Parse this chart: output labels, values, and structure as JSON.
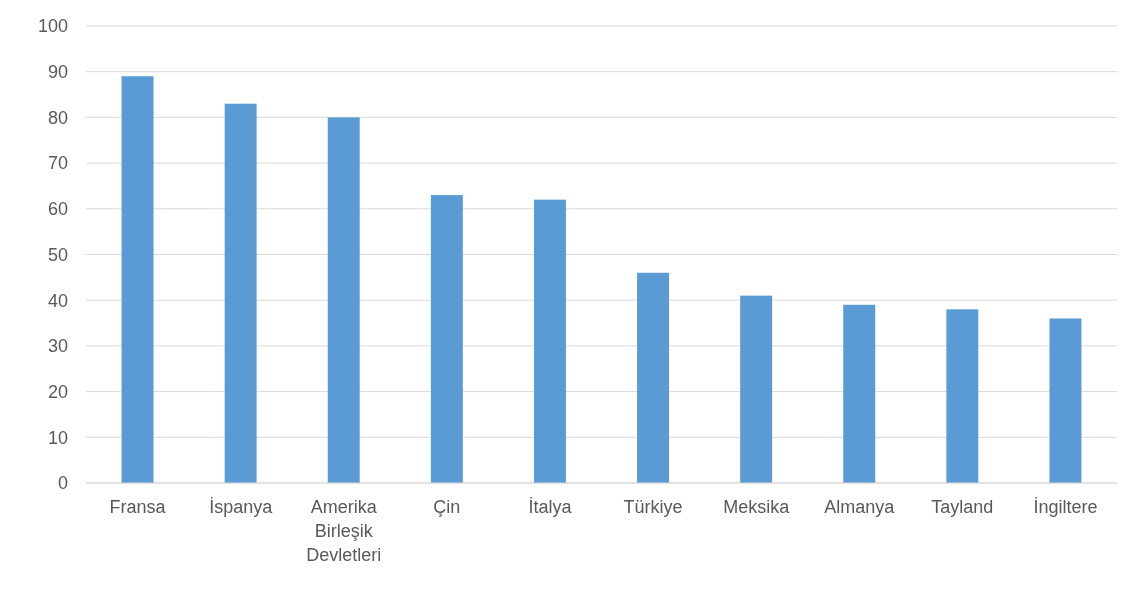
{
  "chart_data": {
    "type": "bar",
    "categories": [
      "Fransa",
      "İspanya",
      "Amerika Birleşik Devletleri",
      "Çin",
      "İtalya",
      "Türkiye",
      "Meksika",
      "Almanya",
      "Tayland",
      "İngiltere"
    ],
    "values": [
      89,
      83,
      80,
      63,
      62,
      46,
      41,
      39,
      38,
      36
    ],
    "color": "#5b9bd5",
    "ylim": [
      0,
      100
    ],
    "yticks": [
      0,
      10,
      20,
      30,
      40,
      50,
      60,
      70,
      80,
      90,
      100
    ],
    "grid": "y"
  }
}
